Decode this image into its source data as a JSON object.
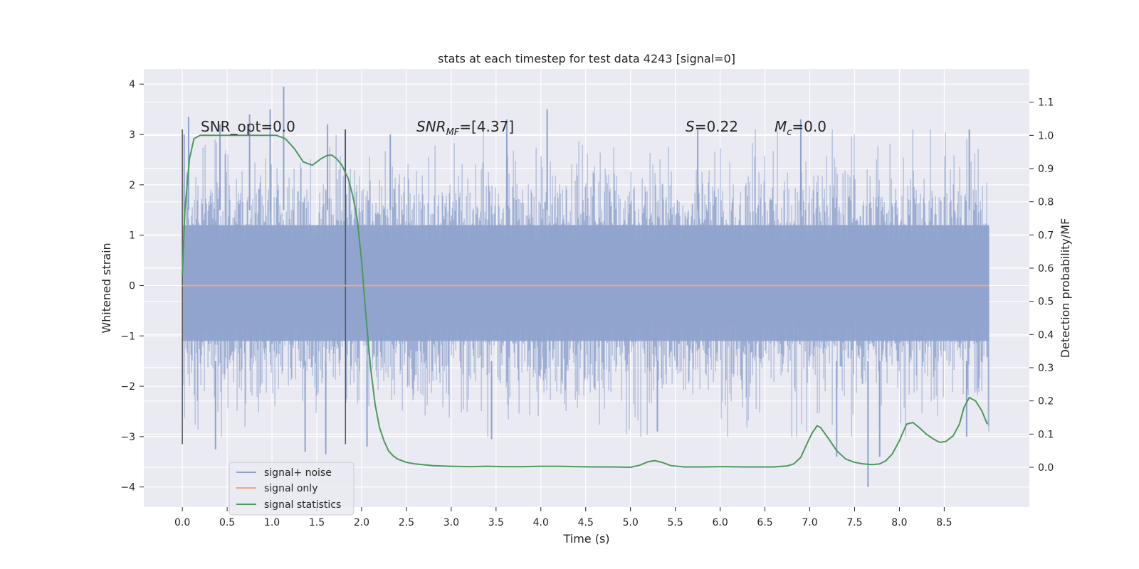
{
  "chart_data": {
    "type": "line",
    "title": "stats at each timestep for test data 4243 [signal=0]",
    "xlabel": "Time (s)",
    "ylabel": "Whitened strain",
    "y2label": "Detection probability/MF",
    "xlim": [
      -0.43,
      9.45
    ],
    "ylim": [
      -4.4,
      4.3
    ],
    "y2lim": [
      -0.12,
      1.2
    ],
    "x_ticks": [
      0.0,
      0.5,
      1.0,
      1.5,
      2.0,
      2.5,
      3.0,
      3.5,
      4.0,
      4.5,
      5.0,
      5.5,
      6.0,
      6.5,
      7.0,
      7.5,
      8.0,
      8.5
    ],
    "x_tick_labels": [
      "0.0",
      "0.5",
      "1.0",
      "1.5",
      "2.0",
      "2.5",
      "3.0",
      "3.5",
      "4.0",
      "4.5",
      "5.0",
      "5.5",
      "6.0",
      "6.5",
      "7.0",
      "7.5",
      "8.0",
      "8.5"
    ],
    "y_ticks": [
      4,
      3,
      2,
      1,
      0,
      -1,
      -2,
      -3,
      -4
    ],
    "y_tick_labels": [
      "4",
      "3",
      "2",
      "1",
      "0",
      "−1",
      "−2",
      "−3",
      "−4"
    ],
    "y2_ticks": [
      1.1,
      1.0,
      0.9,
      0.8,
      0.7,
      0.6,
      0.5,
      0.4,
      0.3,
      0.2,
      0.1,
      0.0
    ],
    "y2_tick_labels": [
      "1.1",
      "1.0",
      "0.9",
      "0.8",
      "0.7",
      "0.6",
      "0.5",
      "0.4",
      "0.3",
      "0.2",
      "0.1",
      "0.0"
    ],
    "grid": true,
    "legend": {
      "position": "lower-left",
      "entries": [
        {
          "label": "signal+ noise",
          "color": "#8fa3cc"
        },
        {
          "label": "signal only",
          "color": "#e7a98a"
        },
        {
          "label": "signal statistics",
          "color": "#4c9a5a"
        }
      ]
    },
    "annotations": {
      "snr_opt": "SNR_opt=0.0",
      "snr_mf_var": "SNR",
      "snr_mf_sub": "MF",
      "snr_mf_val": "=[4.37]",
      "s_var": "S",
      "s_val": "=0.22",
      "mc_var": "M",
      "mc_sub": "c",
      "mc_val": "=0.0"
    },
    "vertical_lines": {
      "x": [
        0.0,
        1.82
      ],
      "y_range": [
        -3.15,
        3.1
      ]
    },
    "series": [
      {
        "name": "signal+ noise",
        "axis": "left",
        "x_range": [
          0.0,
          9.0
        ],
        "core_band": [
          -1.1,
          1.2
        ],
        "approx_envelope_upper": 2.5,
        "approx_envelope_lower": -2.4,
        "peaks": [
          {
            "x": 0.02,
            "y": 3.0
          },
          {
            "x": 0.07,
            "y": 3.35
          },
          {
            "x": 0.42,
            "y": 3.2
          },
          {
            "x": 0.75,
            "y": 3.4
          },
          {
            "x": 0.98,
            "y": 3.5
          },
          {
            "x": 1.13,
            "y": 3.95
          },
          {
            "x": 1.62,
            "y": 3.2
          },
          {
            "x": 2.32,
            "y": 3.0
          },
          {
            "x": 3.62,
            "y": 3.3
          },
          {
            "x": 4.07,
            "y": 3.5
          },
          {
            "x": 5.75,
            "y": 3.1
          },
          {
            "x": 6.9,
            "y": 3.3
          },
          {
            "x": 8.78,
            "y": 3.1
          },
          {
            "x": 0.37,
            "y": -3.25
          },
          {
            "x": 1.37,
            "y": -3.3
          },
          {
            "x": 1.6,
            "y": -3.35
          },
          {
            "x": 2.06,
            "y": -3.2
          },
          {
            "x": 3.45,
            "y": -3.05
          },
          {
            "x": 5.3,
            "y": -2.9
          },
          {
            "x": 7.3,
            "y": -3.4
          },
          {
            "x": 7.65,
            "y": -4.0
          },
          {
            "x": 7.78,
            "y": -3.4
          },
          {
            "x": 8.75,
            "y": -3.0
          }
        ]
      },
      {
        "name": "signal only",
        "axis": "left",
        "x": [
          0.0,
          9.0
        ],
        "y": [
          0.0,
          0.0
        ]
      },
      {
        "name": "signal statistics",
        "axis": "right",
        "x": [
          0.0,
          0.03,
          0.08,
          0.13,
          0.2,
          0.3,
          0.5,
          0.7,
          0.9,
          1.05,
          1.15,
          1.25,
          1.35,
          1.45,
          1.55,
          1.62,
          1.67,
          1.72,
          1.78,
          1.85,
          1.9,
          1.95,
          2.0,
          2.05,
          2.1,
          2.15,
          2.2,
          2.25,
          2.3,
          2.35,
          2.4,
          2.5,
          2.6,
          2.8,
          3.0,
          3.2,
          3.4,
          3.6,
          3.8,
          4.0,
          4.2,
          4.4,
          4.6,
          4.8,
          5.0,
          5.1,
          5.2,
          5.27,
          5.35,
          5.45,
          5.6,
          5.8,
          6.0,
          6.3,
          6.6,
          6.75,
          6.82,
          6.9,
          6.95,
          7.02,
          7.08,
          7.12,
          7.2,
          7.3,
          7.4,
          7.5,
          7.6,
          7.7,
          7.78,
          7.85,
          7.92,
          8.0,
          8.08,
          8.15,
          8.22,
          8.3,
          8.38,
          8.45,
          8.52,
          8.6,
          8.67,
          8.72,
          8.78,
          8.85,
          8.92,
          8.98
        ],
        "y": [
          0.58,
          0.78,
          0.93,
          0.99,
          1.0,
          1.0,
          1.0,
          1.0,
          1.0,
          1.0,
          0.99,
          0.96,
          0.92,
          0.91,
          0.93,
          0.94,
          0.94,
          0.93,
          0.91,
          0.87,
          0.82,
          0.75,
          0.62,
          0.45,
          0.3,
          0.19,
          0.12,
          0.08,
          0.05,
          0.035,
          0.025,
          0.015,
          0.01,
          0.005,
          0.003,
          0.002,
          0.003,
          0.002,
          0.002,
          0.003,
          0.003,
          0.002,
          0.001,
          0.001,
          0.0,
          0.006,
          0.017,
          0.02,
          0.015,
          0.005,
          0.001,
          0.001,
          0.002,
          0.001,
          0.001,
          0.004,
          0.01,
          0.03,
          0.06,
          0.1,
          0.125,
          0.12,
          0.09,
          0.05,
          0.025,
          0.015,
          0.01,
          0.008,
          0.01,
          0.02,
          0.04,
          0.08,
          0.13,
          0.135,
          0.12,
          0.1,
          0.085,
          0.075,
          0.078,
          0.095,
          0.13,
          0.18,
          0.21,
          0.2,
          0.17,
          0.13
        ]
      }
    ]
  }
}
